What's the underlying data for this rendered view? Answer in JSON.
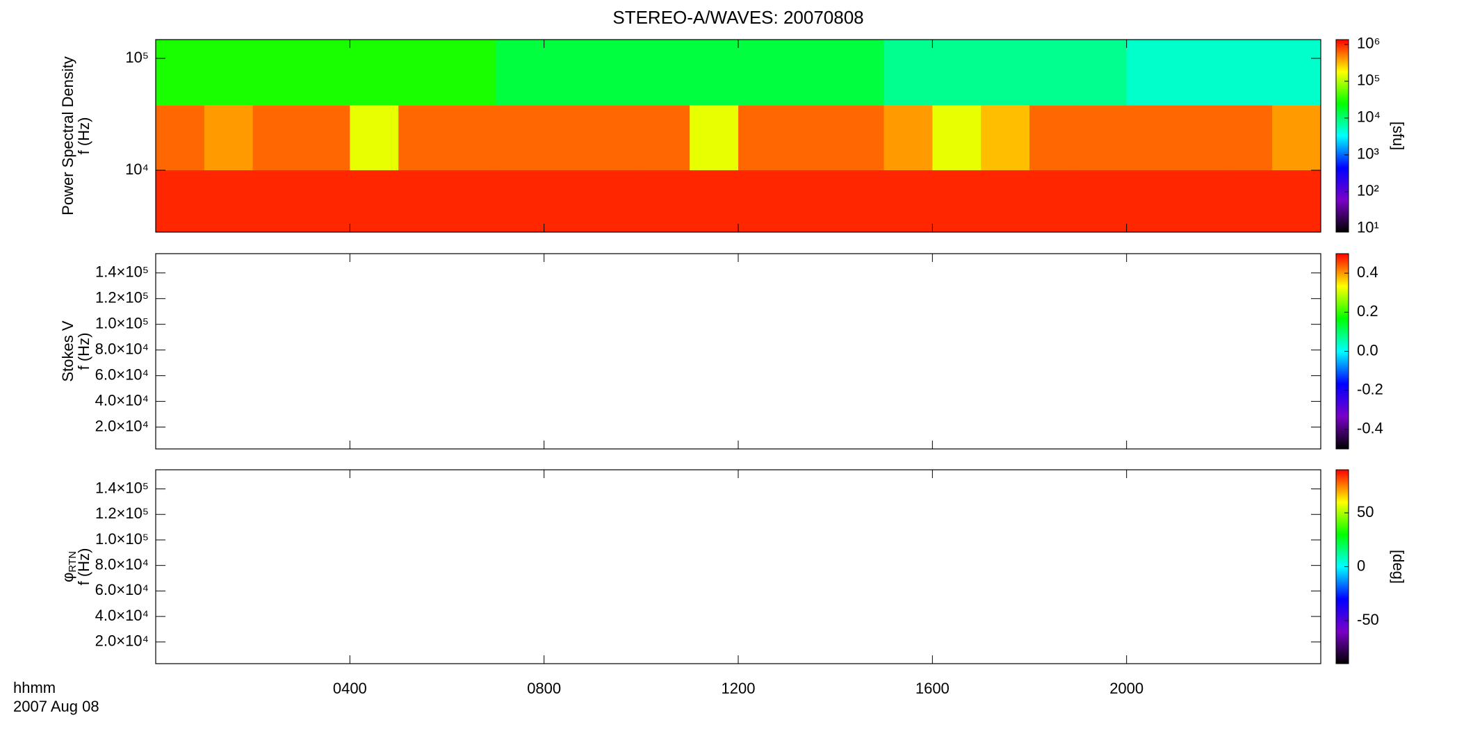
{
  "chart_data": [
    {
      "type": "heatmap",
      "title": "STEREO-A/WAVES: 20070808",
      "ylabel": [
        "Power Spectral Density",
        "f (Hz)"
      ],
      "log": true,
      "ylim": [
        2800,
        147000
      ],
      "yticks": [
        {
          "value": 10000,
          "label": "10⁴"
        },
        {
          "value": 100000,
          "label": "10⁵"
        }
      ],
      "x": [
        0,
        60,
        120,
        180,
        240,
        300,
        360,
        420,
        480,
        540,
        600,
        660,
        720,
        780,
        840,
        900,
        960,
        1020,
        1080,
        1140,
        1200,
        1260,
        1320,
        1380,
        1440
      ],
      "y": [
        2800,
        10000,
        38000,
        147000
      ],
      "z": [
        [
          1000000,
          1000000,
          1000000,
          1000000,
          1000000,
          1000000,
          1000000,
          1000000,
          1000000,
          1000000,
          1000000,
          1000000,
          1000000,
          1000000,
          1000000,
          1000000,
          1000000,
          1000000,
          1000000,
          1000000,
          1000000,
          1000000,
          1000000,
          1000000
        ],
        [
          600000,
          400000,
          600000,
          600000,
          150000,
          600000,
          600000,
          600000,
          600000,
          600000,
          600000,
          150000,
          600000,
          600000,
          600000,
          400000,
          150000,
          300000,
          600000,
          600000,
          600000,
          600000,
          600000,
          400000
        ],
        [
          30000,
          30000,
          30000,
          30000,
          30000,
          30000,
          30000,
          15000,
          15000,
          15000,
          15000,
          15000,
          15000,
          15000,
          15000,
          8000,
          8000,
          8000,
          8000,
          8000,
          5000,
          5000,
          5000,
          5000
        ]
      ],
      "colorbar": {
        "log": true,
        "clim": [
          8,
          1350000
        ],
        "label": "[sfu]",
        "ticks": [
          {
            "value": 10,
            "label": "10¹"
          },
          {
            "value": 100,
            "label": "10²"
          },
          {
            "value": 1000,
            "label": "10³"
          },
          {
            "value": 10000,
            "label": "10⁴"
          },
          {
            "value": 100000,
            "label": "10⁵"
          },
          {
            "value": 1000000,
            "label": "10⁶"
          }
        ]
      }
    },
    {
      "type": "heatmap",
      "ylabel": [
        "Stokes V",
        "f (Hz)"
      ],
      "log": false,
      "ylim": [
        3000,
        155000
      ],
      "yticks": [
        {
          "value": 20000,
          "label": "2.0×10⁴"
        },
        {
          "value": 40000,
          "label": "4.0×10⁴"
        },
        {
          "value": 60000,
          "label": "6.0×10⁴"
        },
        {
          "value": 80000,
          "label": "8.0×10⁴"
        },
        {
          "value": 100000,
          "label": "1.0×10⁵"
        },
        {
          "value": 120000,
          "label": "1.2×10⁵"
        },
        {
          "value": 140000,
          "label": "1.4×10⁵"
        }
      ],
      "colorbar": {
        "log": false,
        "clim": [
          -0.5,
          0.5
        ],
        "ticks": [
          -0.4,
          -0.2,
          {
            "value": 0,
            "label": "0.0"
          },
          0.2,
          0.4
        ]
      }
    },
    {
      "type": "heatmap",
      "ylabel": [
        "φ",
        "f (Hz)"
      ],
      "ylabel_sub": "RTN",
      "log": false,
      "ylim": [
        3000,
        155000
      ],
      "yticks": [
        {
          "value": 20000,
          "label": "2.0×10⁴"
        },
        {
          "value": 40000,
          "label": "4.0×10⁴"
        },
        {
          "value": 60000,
          "label": "6.0×10⁴"
        },
        {
          "value": 80000,
          "label": "8.0×10⁴"
        },
        {
          "value": 100000,
          "label": "1.0×10⁵"
        },
        {
          "value": 120000,
          "label": "1.2×10⁵"
        },
        {
          "value": 140000,
          "label": "1.4×10⁵"
        }
      ],
      "colorbar": {
        "log": false,
        "clim": [
          -90,
          90
        ],
        "label": "[deg]",
        "ticks": [
          -50,
          0,
          50
        ]
      },
      "xlim": [
        0,
        1440
      ],
      "xticks": [
        {
          "value": 240,
          "label": "0400"
        },
        {
          "value": 480,
          "label": "0800"
        },
        {
          "value": 720,
          "label": "1200"
        },
        {
          "value": 960,
          "label": "1600"
        },
        {
          "value": 1200,
          "label": "2000"
        }
      ],
      "xlabel": [
        "hhmm",
        "2007 Aug 08"
      ]
    }
  ],
  "colormap": [
    "#000000",
    "#7a00c8",
    "#0000ff",
    "#00ffff",
    "#00ff00",
    "#ffff00",
    "#ff0000"
  ]
}
